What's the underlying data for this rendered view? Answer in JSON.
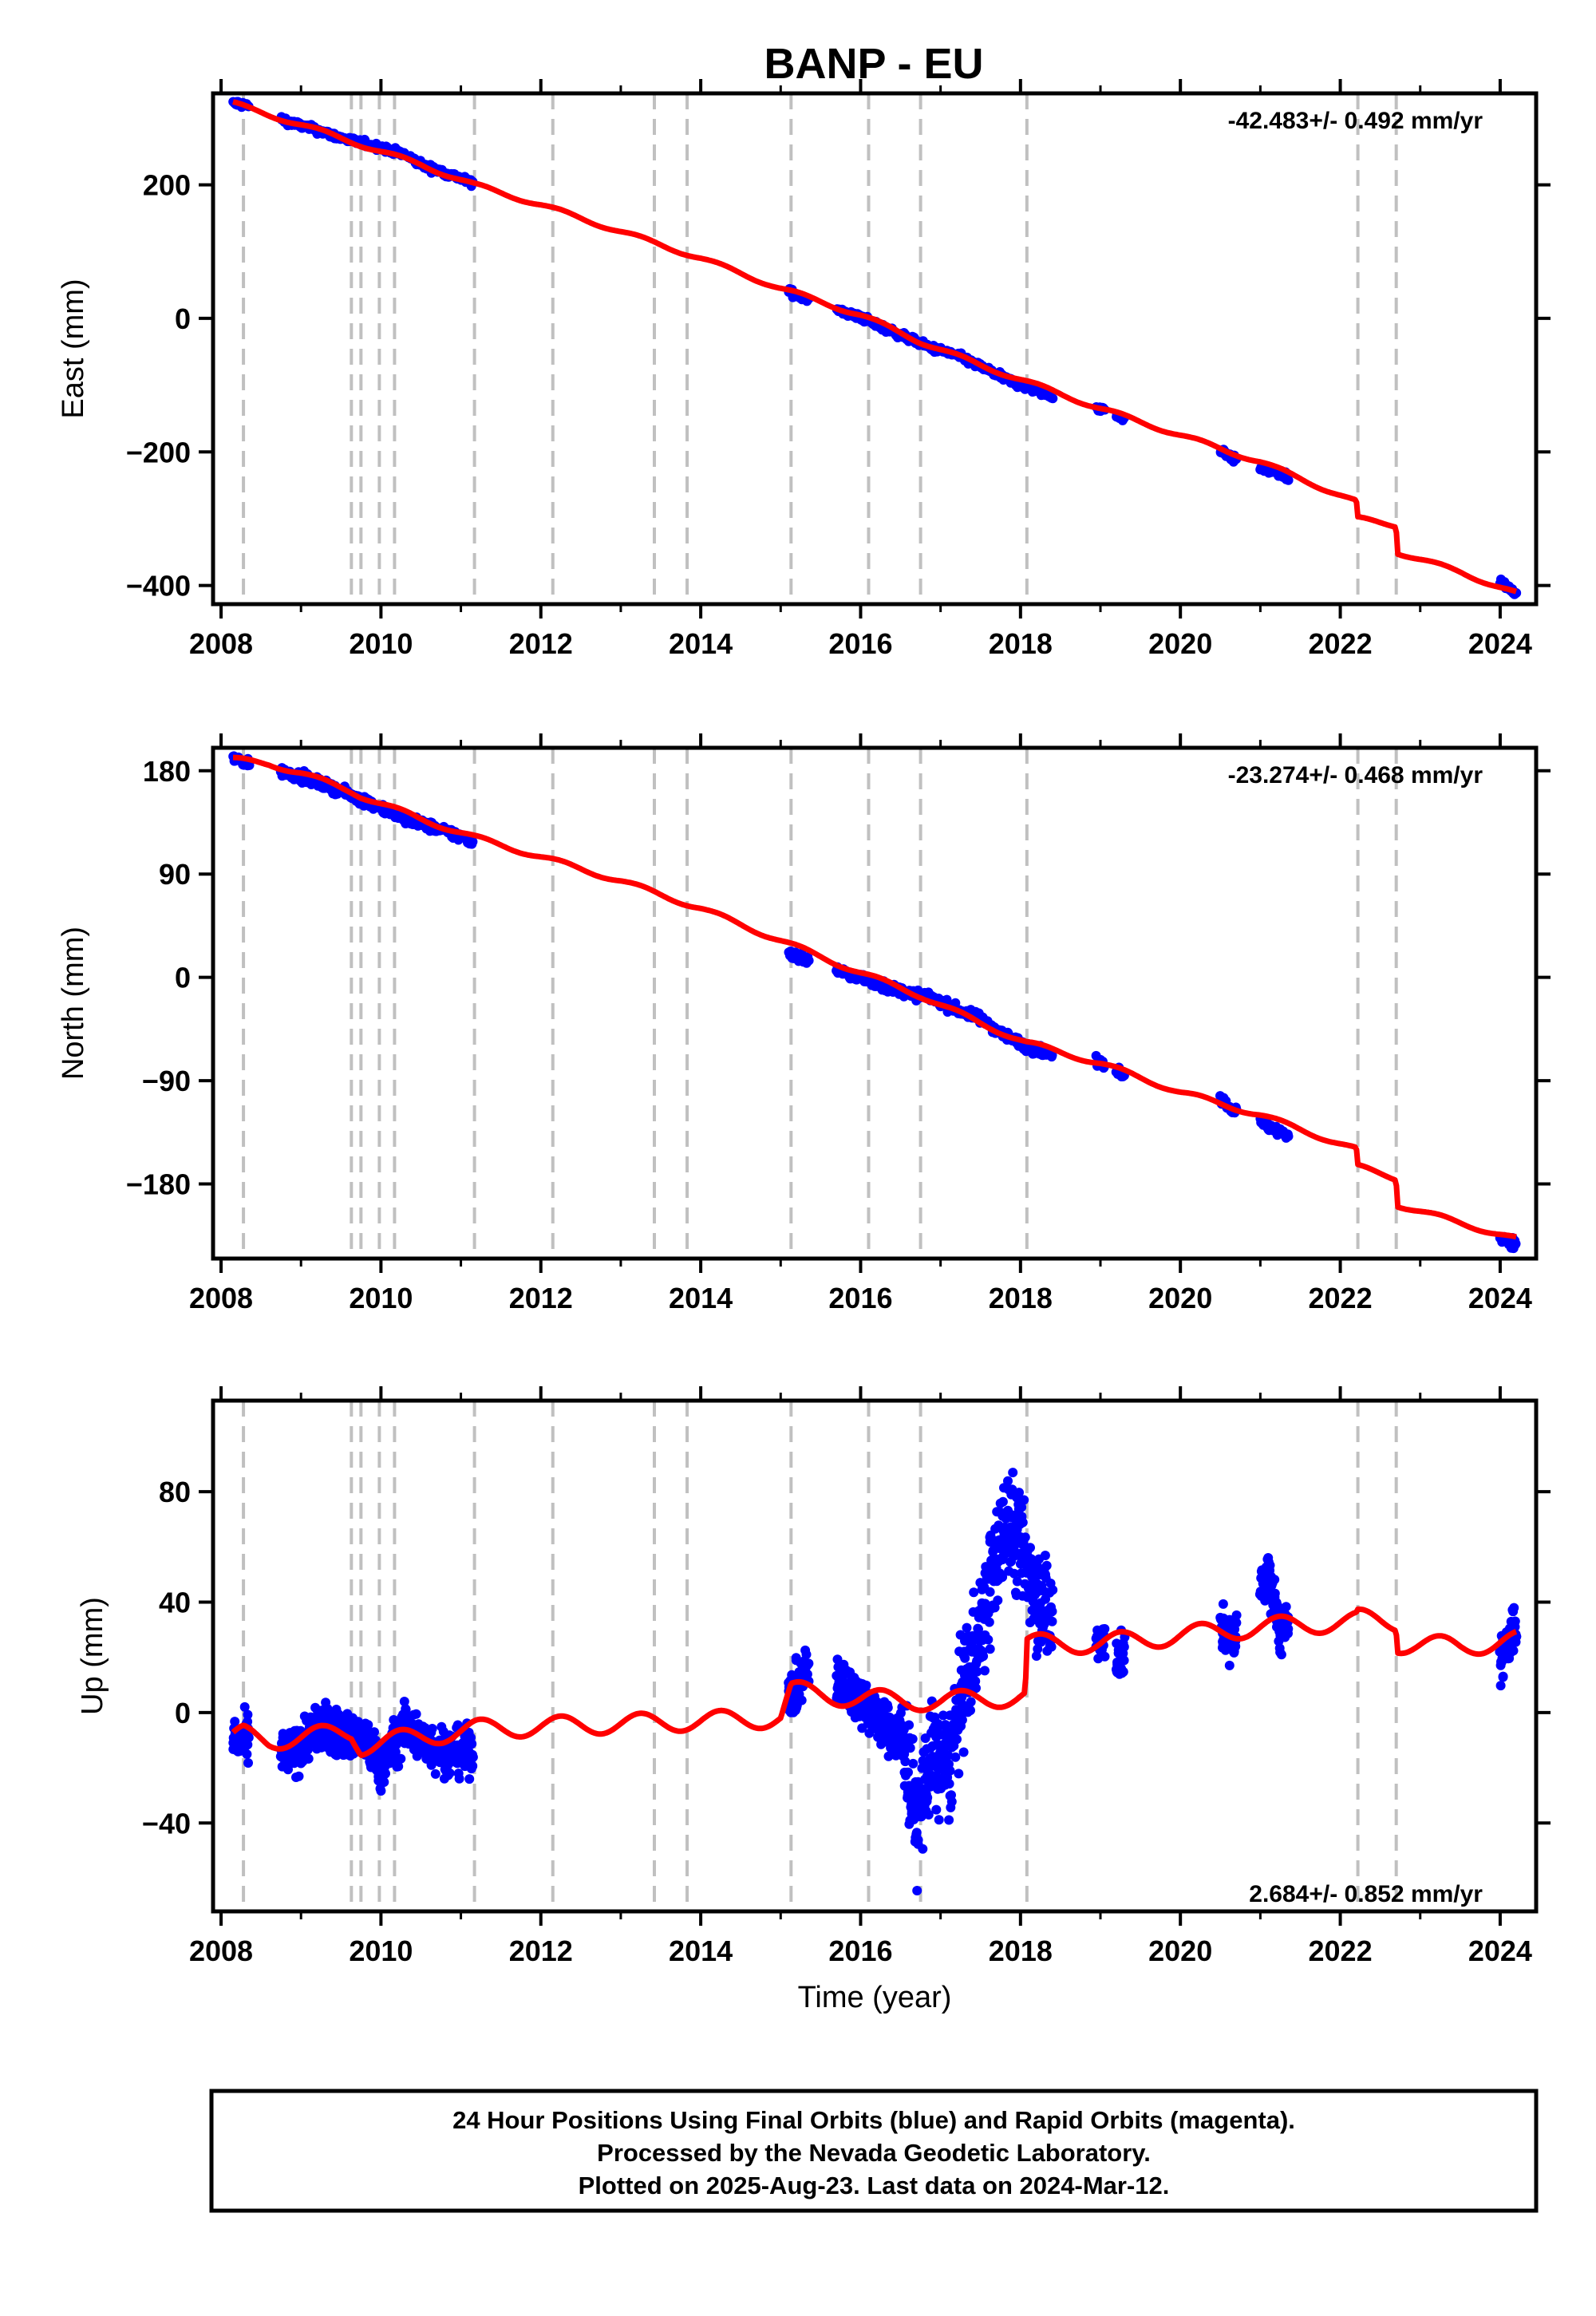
{
  "title": "BANP - EU",
  "footer": {
    "lines": [
      "24 Hour Positions Using Final Orbits (blue) and Rapid Orbits (magenta).",
      "Processed by the Nevada Geodetic Laboratory.",
      "Plotted on 2025-Aug-23. Last data on 2024-Mar-12."
    ]
  },
  "colors": {
    "data": "#0000ff",
    "model": "#ff0000",
    "event_lines": "#c0c0c0"
  },
  "chart_data": [
    {
      "type": "scatter",
      "ylabel": "East (mm)",
      "xlim": [
        2007.9,
        2024.45
      ],
      "ylim": [
        -428,
        337
      ],
      "xticks": [
        2008,
        2010,
        2012,
        2014,
        2016,
        2018,
        2020,
        2022,
        2024
      ],
      "yticks": [
        200,
        0,
        -200,
        -400
      ],
      "ytick_labels": [
        "200",
        "0",
        "−200",
        "−400"
      ],
      "rate_text": "-42.483+/- 0.492 mm/yr",
      "event_lines": [
        2008.28,
        2009.63,
        2009.75,
        2009.98,
        2010.17,
        2011.17,
        2012.15,
        2013.42,
        2013.83,
        2015.13,
        2016.1,
        2016.75,
        2018.08,
        2022.22,
        2022.7
      ],
      "series": [
        {
          "name": "model",
          "kind": "line",
          "x": [
            2008.15,
            2008.3,
            2009.0,
            2009.63,
            2009.75,
            2010.5,
            2011.17,
            2012.0,
            2013.0,
            2014.0,
            2015.0,
            2015.5,
            2016.0,
            2016.75,
            2017.5,
            2018.08,
            2019.0,
            2020.0,
            2021.0,
            2022.2,
            2022.22,
            2022.7,
            2022.71,
            2023.5,
            2024.2
          ],
          "y": [
            322,
            316,
            290,
            265,
            260,
            230,
            200,
            170,
            130,
            90,
            45,
            25,
            5,
            -35,
            -70,
            -95,
            -135,
            -175,
            -215,
            -275,
            -300,
            -310,
            -350,
            -380,
            -412
          ]
        },
        {
          "name": "observations",
          "kind": "points",
          "segments": [
            [
              2008.15,
              2008.35
            ],
            [
              2008.75,
              2011.15
            ],
            [
              2015.1,
              2015.35
            ],
            [
              2015.7,
              2018.4
            ],
            [
              2018.95,
              2019.05
            ],
            [
              2019.2,
              2019.3
            ],
            [
              2020.5,
              2020.7
            ],
            [
              2021.0,
              2021.35
            ],
            [
              2024.0,
              2024.2
            ]
          ],
          "x": [
            2008.2,
            2008.35,
            2008.9,
            2009.2,
            2009.45,
            2009.63,
            2009.8,
            2010.0,
            2010.3,
            2010.55,
            2010.9,
            2011.1,
            2015.15,
            2015.3,
            2015.8,
            2016.0,
            2016.3,
            2016.6,
            2016.9,
            2017.2,
            2017.5,
            2017.8,
            2018.0,
            2018.2,
            2018.35,
            2019.0,
            2019.25,
            2020.55,
            2020.65,
            2021.1,
            2021.3,
            2024.05,
            2024.18
          ],
          "y": [
            322,
            318,
            292,
            282,
            272,
            266,
            262,
            256,
            245,
            228,
            214,
            205,
            38,
            30,
            8,
            2,
            -15,
            -30,
            -45,
            -55,
            -72,
            -90,
            -100,
            -108,
            -115,
            -135,
            -148,
            -200,
            -210,
            -228,
            -235,
            -398,
            -412
          ]
        }
      ]
    },
    {
      "type": "scatter",
      "ylabel": "North (mm)",
      "xlim": [
        2007.9,
        2024.45
      ],
      "ylim": [
        -245,
        200
      ],
      "xticks": [
        2008,
        2010,
        2012,
        2014,
        2016,
        2018,
        2020,
        2022,
        2024
      ],
      "yticks": [
        180,
        90,
        0,
        -90,
        -180
      ],
      "ytick_labels": [
        "180",
        "90",
        "0",
        "−90",
        "−180"
      ],
      "rate_text": "-23.274+/- 0.468 mm/yr",
      "event_lines": [
        2008.28,
        2009.63,
        2009.75,
        2009.98,
        2010.17,
        2011.17,
        2012.15,
        2013.42,
        2013.83,
        2015.13,
        2016.1,
        2016.75,
        2018.08,
        2022.22,
        2022.7
      ],
      "series": [
        {
          "name": "model",
          "kind": "line",
          "x": [
            2008.15,
            2008.6,
            2009.0,
            2009.63,
            2009.75,
            2010.5,
            2011.17,
            2012.0,
            2013.0,
            2014.0,
            2015.0,
            2016.0,
            2016.75,
            2017.5,
            2018.08,
            2019.0,
            2020.0,
            2021.0,
            2022.2,
            2022.22,
            2022.7,
            2022.71,
            2023.5,
            2024.2
          ],
          "y": [
            190,
            186,
            178,
            162,
            158,
            138,
            122,
            105,
            84,
            60,
            32,
            4,
            -16,
            -40,
            -57,
            -75,
            -100,
            -120,
            -150,
            -165,
            -175,
            -198,
            -214,
            -228
          ]
        },
        {
          "name": "observations",
          "kind": "points",
          "segments": [
            [
              2008.15,
              2008.35
            ],
            [
              2008.75,
              2011.15
            ],
            [
              2015.1,
              2015.35
            ],
            [
              2015.7,
              2018.4
            ],
            [
              2018.95,
              2019.05
            ],
            [
              2019.2,
              2019.3
            ],
            [
              2020.5,
              2020.7
            ],
            [
              2021.0,
              2021.35
            ],
            [
              2024.0,
              2024.2
            ]
          ],
          "x": [
            2008.2,
            2008.35,
            2008.9,
            2009.2,
            2009.45,
            2009.63,
            2009.8,
            2010.0,
            2010.3,
            2010.55,
            2010.9,
            2011.1,
            2015.15,
            2015.3,
            2015.8,
            2016.0,
            2016.3,
            2016.6,
            2016.9,
            2017.2,
            2017.5,
            2017.8,
            2018.0,
            2018.2,
            2018.35,
            2019.0,
            2019.25,
            2020.55,
            2020.65,
            2021.1,
            2021.3,
            2024.05,
            2024.18
          ],
          "y": [
            190,
            186,
            177,
            170,
            164,
            158,
            154,
            148,
            138,
            133,
            125,
            120,
            20,
            16,
            4,
            0,
            -8,
            -14,
            -18,
            -28,
            -36,
            -50,
            -58,
            -63,
            -67,
            -75,
            -82,
            -108,
            -115,
            -130,
            -136,
            -228,
            -232
          ]
        }
      ]
    },
    {
      "type": "scatter",
      "xlabel": "Time (year)",
      "ylabel": "Up (mm)",
      "xlim": [
        2007.9,
        2024.45
      ],
      "ylim": [
        -72,
        113
      ],
      "xticks": [
        2008,
        2010,
        2012,
        2014,
        2016,
        2018,
        2020,
        2022,
        2024
      ],
      "yticks": [
        80,
        40,
        0,
        -40
      ],
      "ytick_labels": [
        "80",
        "40",
        "0",
        "−40"
      ],
      "rate_text": "2.684+/- 0.852 mm/yr",
      "event_lines": [
        2008.28,
        2009.63,
        2009.75,
        2009.98,
        2010.17,
        2011.17,
        2012.15,
        2013.42,
        2013.83,
        2015.13,
        2016.1,
        2016.75,
        2018.08,
        2022.22,
        2022.7
      ],
      "series": [
        {
          "name": "model",
          "kind": "line",
          "x": [
            2008.15,
            2008.28,
            2008.6,
            2009.0,
            2009.63,
            2009.75,
            2010.17,
            2011.17,
            2012.0,
            2013.0,
            2014.0,
            2015.0,
            2015.13,
            2016.0,
            2017.0,
            2018.06,
            2018.08,
            2019.0,
            2020.0,
            2021.0,
            2022.2,
            2022.22,
            2022.7,
            2022.71,
            2023.5,
            2024.2
          ],
          "y": [
            -10,
            -8,
            -10,
            -9,
            -7,
            -12,
            -10,
            -6,
            -5,
            -4,
            -3,
            -2,
            8,
            5,
            4,
            6,
            25,
            25,
            28,
            31,
            33,
            34,
            33,
            25,
            24,
            26
          ]
        },
        {
          "name": "observations",
          "kind": "points",
          "segments": [
            [
              2008.15,
              2008.35
            ],
            [
              2008.75,
              2011.15
            ],
            [
              2015.1,
              2015.35
            ],
            [
              2015.7,
              2018.4
            ],
            [
              2018.95,
              2019.05
            ],
            [
              2019.2,
              2019.3
            ],
            [
              2020.5,
              2020.7
            ],
            [
              2021.0,
              2021.35
            ],
            [
              2024.0,
              2024.2
            ]
          ],
          "x": [
            2008.2,
            2008.9,
            2009.2,
            2009.5,
            2009.8,
            2010.0,
            2010.3,
            2010.6,
            2010.9,
            2015.2,
            2015.3,
            2015.8,
            2016.0,
            2016.3,
            2016.55,
            2016.7,
            2016.9,
            2017.1,
            2017.3,
            2017.5,
            2017.7,
            2017.85,
            2018.0,
            2018.2,
            2018.35,
            2019.0,
            2019.25,
            2020.55,
            2020.65,
            2021.1,
            2021.25,
            2024.05,
            2024.15
          ],
          "y": [
            -10,
            -15,
            -5,
            -8,
            -10,
            -20,
            -5,
            -12,
            -15,
            8,
            15,
            10,
            5,
            -5,
            -10,
            -40,
            -15,
            -20,
            10,
            30,
            55,
            70,
            60,
            45,
            35,
            25,
            20,
            30,
            25,
            50,
            30,
            20,
            30
          ]
        }
      ]
    }
  ]
}
